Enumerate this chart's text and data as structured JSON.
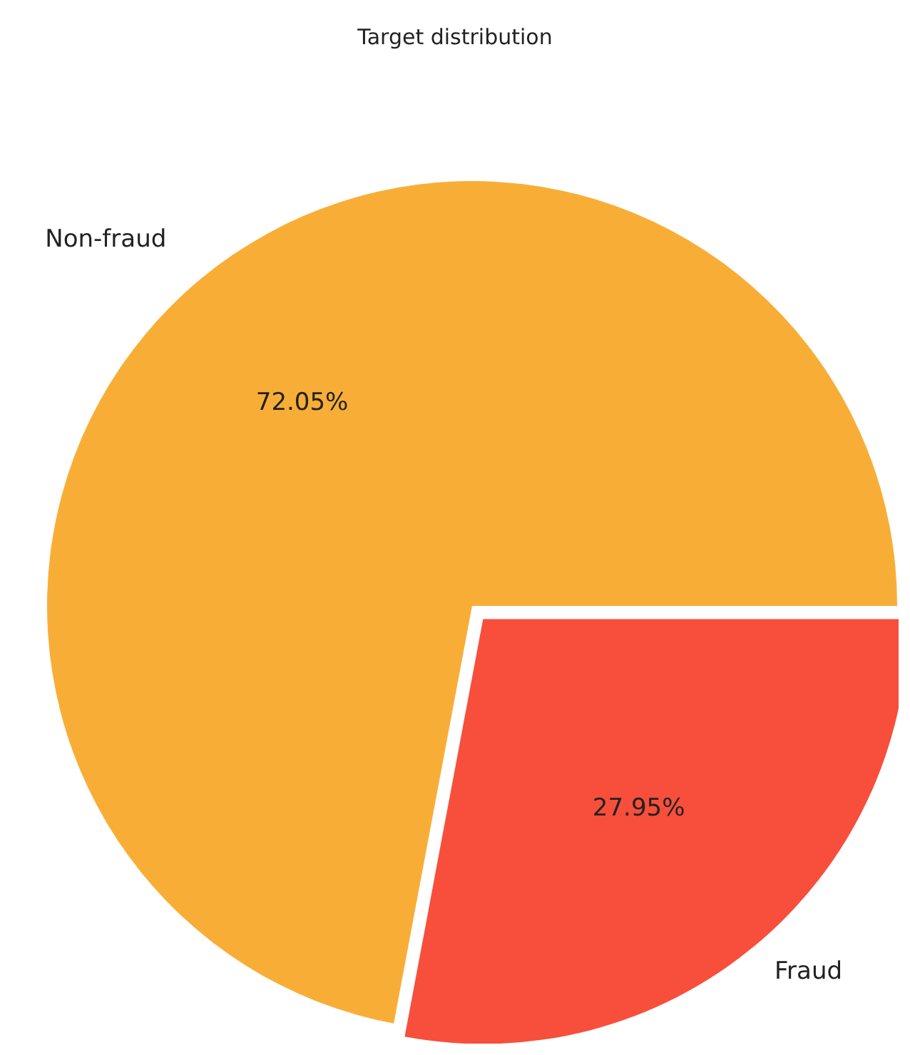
{
  "chart_data": {
    "type": "pie",
    "title": "Target distribution",
    "categories": [
      "Non-fraud",
      "Fraud"
    ],
    "values": [
      72.05,
      27.95
    ],
    "colors": [
      "#f8ae36",
      "#f74f3b"
    ],
    "value_labels": [
      "72.05%",
      "27.95%"
    ]
  }
}
